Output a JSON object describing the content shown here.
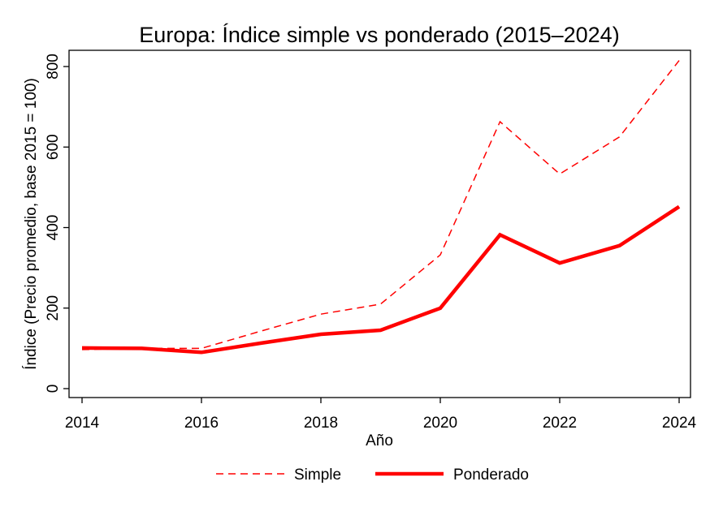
{
  "chart_data": {
    "type": "line",
    "title": "Europa: Índice simple vs ponderado (2015–2024)",
    "xlabel": "Año",
    "ylabel": "Índice (Precio promedio, base 2015 = 100)",
    "xlim": [
      2014,
      2024
    ],
    "ylim": [
      0,
      840
    ],
    "xticks": [
      2014,
      2016,
      2018,
      2020,
      2022,
      2024
    ],
    "yticks": [
      0,
      200,
      400,
      600,
      800
    ],
    "grid": false,
    "legend_position": "bottom",
    "x": [
      2014,
      2015,
      2016,
      2017,
      2018,
      2019,
      2020,
      2021,
      2022,
      2023,
      2024
    ],
    "series": [
      {
        "name": "Simple",
        "style": "dashed",
        "color": "#ff0000",
        "values": [
          97,
          100,
          100,
          143,
          185,
          210,
          332,
          663,
          533,
          625,
          815
        ]
      },
      {
        "name": "Ponderado",
        "style": "solid-thick",
        "color": "#ff0000",
        "values": [
          101,
          100,
          90,
          113,
          135,
          145,
          200,
          382,
          312,
          355,
          452
        ]
      }
    ]
  }
}
